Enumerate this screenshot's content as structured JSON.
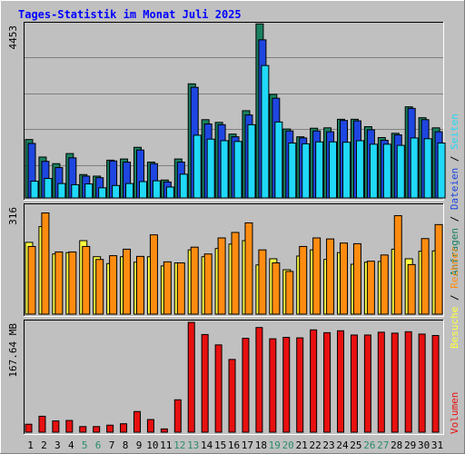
{
  "colors": {
    "background": "#c0c0c0",
    "anfragen": "#1a8060",
    "dateien": "#1e46e0",
    "seiten": "#20d8f8",
    "besuche": "#ffff40",
    "rechner": "#ff8c10",
    "volumen": "#e81010",
    "weekday_label": "#000000",
    "weekend_label": "#2a8c6c"
  },
  "chart_data": {
    "type": "bar",
    "title": "Tages-Statistik im Monat Juli 2025",
    "categories": [
      "1",
      "2",
      "3",
      "4",
      "5",
      "6",
      "7",
      "8",
      "9",
      "10",
      "11",
      "12",
      "13",
      "14",
      "15",
      "16",
      "17",
      "18",
      "19",
      "20",
      "21",
      "22",
      "23",
      "24",
      "25",
      "26",
      "27",
      "28",
      "29",
      "30",
      "31"
    ],
    "weekend_days": [
      "5",
      "6",
      "12",
      "13",
      "19",
      "20",
      "26",
      "27"
    ],
    "panels": [
      {
        "name": "requests",
        "ymax_label": "4453",
        "ymax": 4453,
        "series": [
          {
            "name": "Anfragen",
            "color": "#1a8060",
            "values": [
              1500,
              1050,
              880,
              1140,
              600,
              560,
              970,
              1000,
              1300,
              920,
              460,
              1000,
              2930,
              2010,
              1940,
              1640,
              2240,
              4470,
              2660,
              1770,
              1570,
              1790,
              1800,
              2020,
              2020,
              1830,
              1550,
              1660,
              2340,
              2060,
              1800
            ]
          },
          {
            "name": "Dateien",
            "color": "#1e46e0",
            "values": [
              1400,
              940,
              780,
              1030,
              560,
              520,
              950,
              920,
              1230,
              880,
              410,
              920,
              2840,
              1900,
              1880,
              1570,
              2130,
              4060,
              2560,
              1720,
              1540,
              1720,
              1700,
              1990,
              1980,
              1750,
              1480,
              1620,
              2300,
              2010,
              1700
            ]
          },
          {
            "name": "Seiten",
            "color": "#20d8f8",
            "values": [
              430,
              500,
              370,
              340,
              360,
              260,
              320,
              370,
              420,
              440,
              280,
              610,
              1610,
              1510,
              1470,
              1450,
              1880,
              3400,
              1950,
              1410,
              1390,
              1440,
              1440,
              1430,
              1470,
              1380,
              1380,
              1350,
              1540,
              1520,
              1410
            ]
          }
        ]
      },
      {
        "name": "visits",
        "ymax_label": "316",
        "ymax": 316,
        "series": [
          {
            "name": "Besuche",
            "color": "#ffff40",
            "values": [
              210,
              256,
              176,
              180,
              215,
              168,
              148,
              168,
              152,
              168,
              141,
              150,
              188,
              168,
              192,
              205,
              215,
              144,
              162,
              130,
              170,
              188,
              160,
              180,
              146,
              152,
              154,
              190,
              162,
              184,
              185
            ]
          },
          {
            "name": "Rechner",
            "color": "#ff8c10",
            "values": [
              198,
              296,
              182,
              182,
              198,
              160,
              171,
              190,
              169,
              232,
              153,
              150,
              196,
              176,
              223,
              239,
              267,
              188,
              150,
              125,
              198,
              223,
              220,
              208,
              206,
              155,
              173,
              288,
              145,
              221,
              262
            ]
          }
        ]
      },
      {
        "name": "volume",
        "ymax_label": "167.64 MB",
        "ymax": 234,
        "series": [
          {
            "name": "Volumen",
            "color": "#e81010",
            "values": [
              17,
              34,
              24,
              25,
              12,
              12,
              15,
              18,
              44,
              27,
              7,
              69,
              234,
              208,
              186,
              155,
              200,
              223,
              199,
              202,
              201,
              218,
              212,
              216,
              207,
              207,
              213,
              211,
              214,
              209,
              206
            ]
          }
        ]
      }
    ],
    "legend": {
      "top_panel": [
        {
          "name": "Anfragen",
          "color": "#1a8060"
        },
        {
          "name": "Dateien",
          "color": "#1e46e0"
        },
        {
          "name": "Seiten",
          "color": "#20d8f8"
        }
      ],
      "middle_panel": [
        {
          "name": "Besuche",
          "color": "#ffff40"
        },
        {
          "name": "Rechner",
          "color": "#ff8c10"
        }
      ],
      "bottom_panel": [
        {
          "name": "Volumen",
          "color": "#e81010"
        }
      ],
      "separator": "/"
    }
  }
}
